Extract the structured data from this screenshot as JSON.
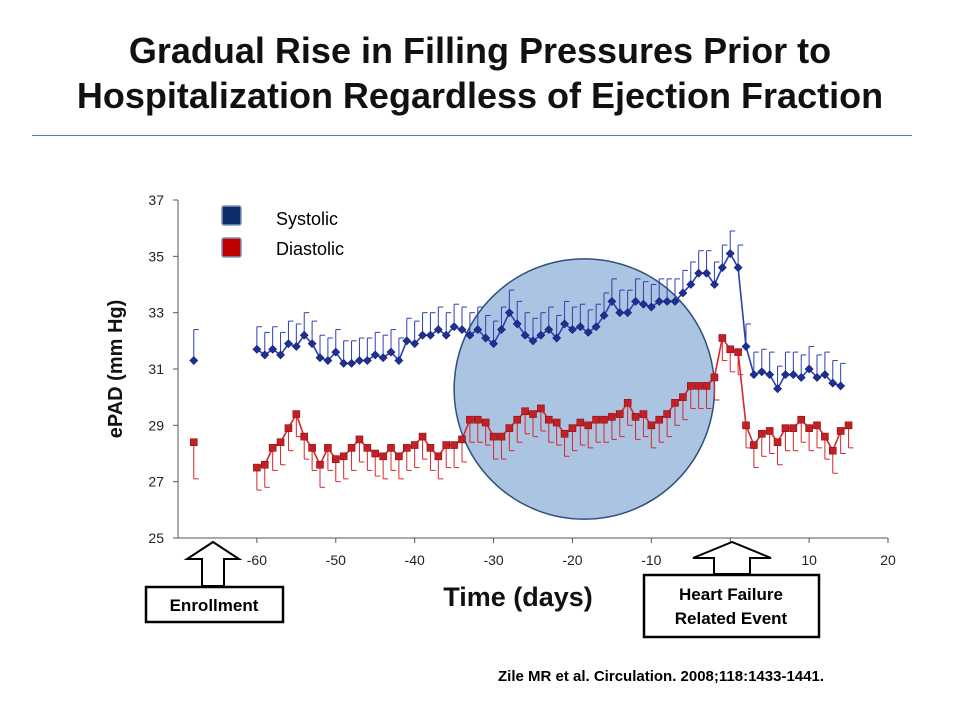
{
  "slide": {
    "title_line1": "Gradual Rise in Filling Pressures Prior to",
    "title_line2": "Hospitalization Regardless of Ejection Fraction",
    "citation": "Zile MR et al. Circulation. 2008;118:1433-1441."
  },
  "callouts": {
    "left": "Enrollment",
    "right_line1": "Heart Failure",
    "right_line2": "Related Event"
  },
  "colors": {
    "systolic": "#2c3fb5",
    "systolic_marker": "#1f2f96",
    "diastolic": "#d9262a",
    "diastolic_marker": "#c41f24",
    "legend_systolic": "#0e2d6b",
    "legend_diastolic": "#c00000",
    "highlight": "#8fb0d8",
    "highlight_stroke": "#2f4f7f"
  },
  "chart_data": {
    "type": "line",
    "title": "",
    "xlabel": "Time (days)",
    "ylabel": "ePAD (mm Hg)",
    "xlim": [
      -70,
      20
    ],
    "ylim": [
      25,
      37
    ],
    "xticks": [
      -60,
      -50,
      -40,
      -30,
      -20,
      -10,
      0,
      10,
      20
    ],
    "yticks": [
      25,
      27,
      29,
      31,
      33,
      35,
      37
    ],
    "grid": false,
    "legend_position": "top-left",
    "highlight_region": {
      "shape": "circle",
      "x_range": [
        -35,
        -2
      ]
    },
    "series": [
      {
        "name": "Systolic",
        "enrollment_point": {
          "x": -68,
          "y": 31.3,
          "err": 1.1
        },
        "points": [
          [
            -60,
            31.7
          ],
          [
            -59,
            31.5
          ],
          [
            -58,
            31.7
          ],
          [
            -57,
            31.5
          ],
          [
            -56,
            31.9
          ],
          [
            -55,
            31.8
          ],
          [
            -54,
            32.2
          ],
          [
            -53,
            31.9
          ],
          [
            -52,
            31.4
          ],
          [
            -51,
            31.3
          ],
          [
            -50,
            31.6
          ],
          [
            -49,
            31.2
          ],
          [
            -48,
            31.2
          ],
          [
            -47,
            31.3
          ],
          [
            -46,
            31.3
          ],
          [
            -45,
            31.5
          ],
          [
            -44,
            31.4
          ],
          [
            -43,
            31.6
          ],
          [
            -42,
            31.3
          ],
          [
            -41,
            32.0
          ],
          [
            -40,
            31.9
          ],
          [
            -39,
            32.2
          ],
          [
            -38,
            32.2
          ],
          [
            -37,
            32.4
          ],
          [
            -36,
            32.2
          ],
          [
            -35,
            32.5
          ],
          [
            -34,
            32.4
          ],
          [
            -33,
            32.2
          ],
          [
            -32,
            32.4
          ],
          [
            -31,
            32.1
          ],
          [
            -30,
            31.9
          ],
          [
            -29,
            32.4
          ],
          [
            -28,
            33.0
          ],
          [
            -27,
            32.6
          ],
          [
            -26,
            32.2
          ],
          [
            -25,
            32.0
          ],
          [
            -24,
            32.2
          ],
          [
            -23,
            32.4
          ],
          [
            -22,
            32.1
          ],
          [
            -21,
            32.6
          ],
          [
            -20,
            32.4
          ],
          [
            -19,
            32.5
          ],
          [
            -18,
            32.3
          ],
          [
            -17,
            32.5
          ],
          [
            -16,
            32.9
          ],
          [
            -15,
            33.4
          ],
          [
            -14,
            33.0
          ],
          [
            -13,
            33.0
          ],
          [
            -12,
            33.4
          ],
          [
            -11,
            33.3
          ],
          [
            -10,
            33.2
          ],
          [
            -9,
            33.4
          ],
          [
            -8,
            33.4
          ],
          [
            -7,
            33.4
          ],
          [
            -6,
            33.7
          ],
          [
            -5,
            34.0
          ],
          [
            -4,
            34.4
          ],
          [
            -3,
            34.4
          ],
          [
            -2,
            34.0
          ],
          [
            -1,
            34.6
          ],
          [
            0,
            35.1
          ],
          [
            1,
            34.6
          ],
          [
            2,
            31.8
          ],
          [
            3,
            30.8
          ],
          [
            4,
            30.9
          ],
          [
            5,
            30.8
          ],
          [
            6,
            30.3
          ],
          [
            7,
            30.8
          ],
          [
            8,
            30.8
          ],
          [
            9,
            30.7
          ],
          [
            10,
            31.0
          ],
          [
            11,
            30.7
          ],
          [
            12,
            30.8
          ],
          [
            13,
            30.5
          ],
          [
            14,
            30.4
          ]
        ],
        "err": 0.8
      },
      {
        "name": "Diastolic",
        "enrollment_point": {
          "x": -68,
          "y": 28.4,
          "err": 1.3
        },
        "points": [
          [
            -60,
            27.5
          ],
          [
            -59,
            27.6
          ],
          [
            -58,
            28.2
          ],
          [
            -57,
            28.4
          ],
          [
            -56,
            28.9
          ],
          [
            -55,
            29.4
          ],
          [
            -54,
            28.6
          ],
          [
            -53,
            28.2
          ],
          [
            -52,
            27.6
          ],
          [
            -51,
            28.2
          ],
          [
            -50,
            27.8
          ],
          [
            -49,
            27.9
          ],
          [
            -48,
            28.2
          ],
          [
            -47,
            28.5
          ],
          [
            -46,
            28.2
          ],
          [
            -45,
            28.0
          ],
          [
            -44,
            27.9
          ],
          [
            -43,
            28.2
          ],
          [
            -42,
            27.9
          ],
          [
            -41,
            28.2
          ],
          [
            -40,
            28.3
          ],
          [
            -39,
            28.6
          ],
          [
            -38,
            28.2
          ],
          [
            -37,
            27.9
          ],
          [
            -36,
            28.3
          ],
          [
            -35,
            28.3
          ],
          [
            -34,
            28.5
          ],
          [
            -33,
            29.2
          ],
          [
            -32,
            29.2
          ],
          [
            -31,
            29.1
          ],
          [
            -30,
            28.6
          ],
          [
            -29,
            28.6
          ],
          [
            -28,
            28.9
          ],
          [
            -27,
            29.2
          ],
          [
            -26,
            29.5
          ],
          [
            -25,
            29.4
          ],
          [
            -24,
            29.6
          ],
          [
            -23,
            29.2
          ],
          [
            -22,
            29.1
          ],
          [
            -21,
            28.7
          ],
          [
            -20,
            28.9
          ],
          [
            -19,
            29.1
          ],
          [
            -18,
            29.0
          ],
          [
            -17,
            29.2
          ],
          [
            -16,
            29.2
          ],
          [
            -15,
            29.3
          ],
          [
            -14,
            29.4
          ],
          [
            -13,
            29.8
          ],
          [
            -12,
            29.3
          ],
          [
            -11,
            29.4
          ],
          [
            -10,
            29.0
          ],
          [
            -9,
            29.2
          ],
          [
            -8,
            29.4
          ],
          [
            -7,
            29.8
          ],
          [
            -6,
            30.0
          ],
          [
            -5,
            30.4
          ],
          [
            -4,
            30.4
          ],
          [
            -3,
            30.4
          ],
          [
            -2,
            30.7
          ],
          [
            -1,
            32.1
          ],
          [
            0,
            31.7
          ],
          [
            1,
            31.6
          ],
          [
            2,
            29.0
          ],
          [
            3,
            28.3
          ],
          [
            4,
            28.7
          ],
          [
            5,
            28.8
          ],
          [
            6,
            28.4
          ],
          [
            7,
            28.9
          ],
          [
            8,
            28.9
          ],
          [
            9,
            29.2
          ],
          [
            10,
            28.9
          ],
          [
            11,
            29.0
          ],
          [
            12,
            28.6
          ],
          [
            13,
            28.1
          ],
          [
            14,
            28.8
          ],
          [
            15,
            29.0
          ]
        ],
        "err": 0.8
      }
    ]
  }
}
